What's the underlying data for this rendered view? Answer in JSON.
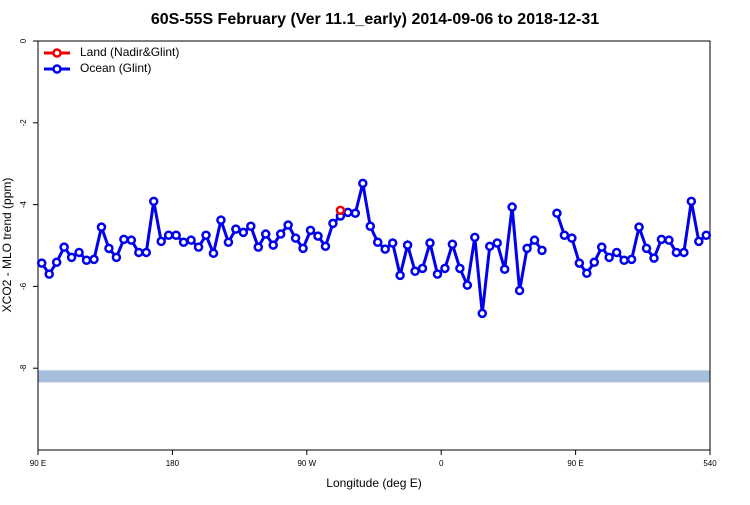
{
  "chart_data": {
    "type": "line",
    "title": "60S-55S February (Ver 11.1_early)   2014-09-06 to 2018-12-31",
    "xlabel": "Longitude (deg E)",
    "ylabel": "XCO2 - MLO trend (ppm)",
    "xlim": [
      90,
      540
    ],
    "ylim": [
      -10,
      0
    ],
    "xticks": [
      {
        "value": 90,
        "label": "90 E"
      },
      180,
      {
        "value": 270,
        "label": "90 W"
      },
      {
        "value": 360,
        "label": "0"
      },
      {
        "value": 450,
        "label": "90 E"
      },
      540
    ],
    "yticks": [
      0,
      -2,
      -4,
      -6,
      -8
    ],
    "legend": "top-left",
    "reference_band": {
      "value": -8.2,
      "color": "#a6bddb"
    },
    "x": [
      92.5,
      97.5,
      102.5,
      107.5,
      112.5,
      117.5,
      122.5,
      127.5,
      132.5,
      137.5,
      142.5,
      147.5,
      152.5,
      157.5,
      162.5,
      167.5,
      172.5,
      177.5,
      182.5,
      187.5,
      192.5,
      197.5,
      202.5,
      207.5,
      212.5,
      217.5,
      222.5,
      227.5,
      232.5,
      237.5,
      242.5,
      247.5,
      252.5,
      257.5,
      262.5,
      267.5,
      272.5,
      277.5,
      282.5,
      287.5,
      292.5,
      297.5,
      302.5,
      307.5,
      312.5,
      317.5,
      322.5,
      327.5,
      332.5,
      337.5,
      342.5,
      347.5,
      352.5,
      357.5,
      362.5,
      367.5,
      372.5,
      377.5,
      382.5,
      387.5,
      392.5,
      397.5,
      402.5,
      407.5,
      412.5,
      417.5,
      422.5,
      427.5,
      432.5,
      437.5,
      442.5,
      447.5,
      452.5,
      457.5,
      462.5,
      467.5,
      472.5,
      477.5,
      482.5,
      487.5,
      492.5,
      497.5,
      502.5,
      507.5,
      512.5,
      517.5,
      522.5,
      527.5,
      532.5,
      537.5
    ],
    "series": [
      {
        "name": "Land (Nadir&Glint)",
        "color": "#ee0000",
        "x": [
          292.5
        ],
        "values": [
          -4.14
        ]
      },
      {
        "name": "Ocean (Glint)",
        "color": "#0000ee",
        "values": [
          -5.43,
          -5.7,
          -5.41,
          -5.04,
          -5.29,
          -5.17,
          -5.36,
          -5.34,
          -4.55,
          -5.07,
          -5.29,
          -4.85,
          -4.87,
          -5.17,
          -5.17,
          -3.92,
          -4.9,
          -4.75,
          -4.75,
          -4.92,
          -4.87,
          -5.04,
          -4.75,
          -5.19,
          -4.38,
          -4.92,
          -4.6,
          -4.68,
          -4.53,
          -5.04,
          -4.72,
          -4.99,
          -4.72,
          -4.5,
          -4.82,
          -5.07,
          -4.63,
          -4.77,
          -5.02,
          -4.46,
          -4.28,
          -4.19,
          -4.21,
          -3.48,
          -4.53,
          -4.92,
          -5.09,
          -4.94,
          -5.73,
          -4.99,
          -5.63,
          -5.56,
          -4.94,
          -5.7,
          -5.56,
          -4.97,
          -5.56,
          -5.97,
          -4.8,
          -6.66,
          -5.02,
          -4.94,
          -5.58,
          -4.06,
          -6.1,
          -5.07,
          -4.87,
          -5.12,
          null,
          -4.21,
          -4.75,
          -4.82,
          -5.43,
          -5.68,
          -5.41,
          -5.04,
          -5.29,
          -5.17,
          -5.36,
          -5.34,
          -4.55,
          -5.07,
          -5.31,
          -4.85,
          -4.87,
          -5.17,
          -5.17,
          -3.92,
          -4.9,
          -4.75
        ]
      }
    ]
  }
}
